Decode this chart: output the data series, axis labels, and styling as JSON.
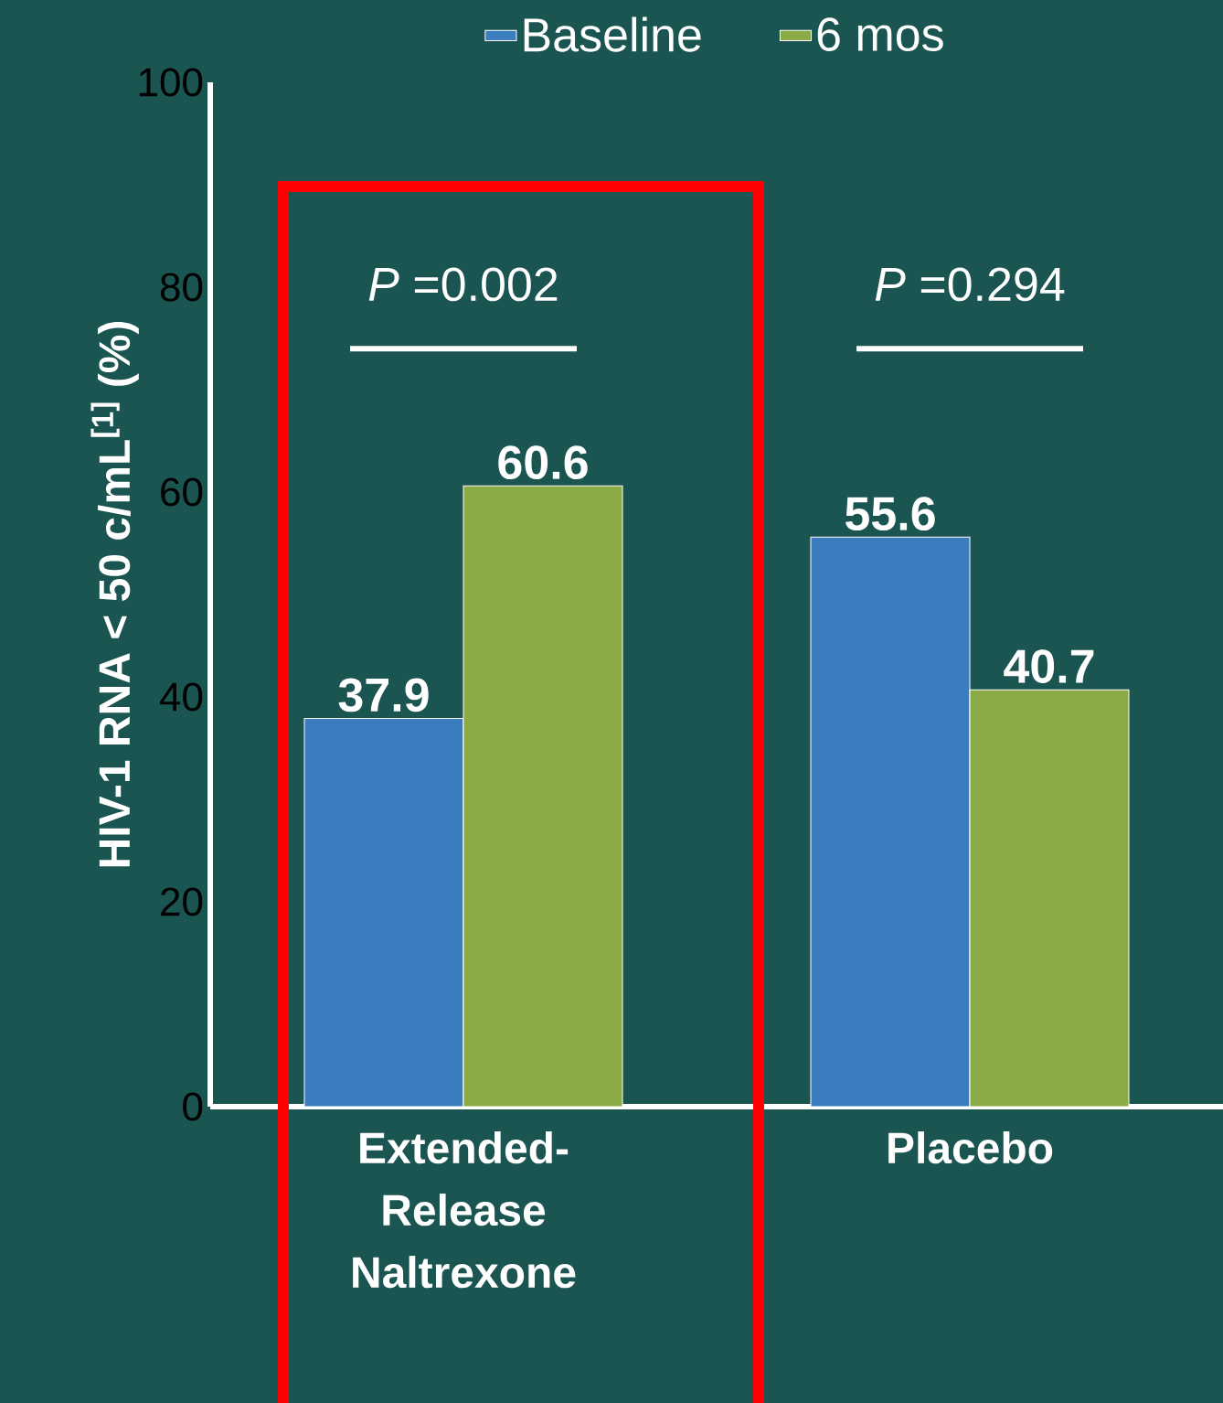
{
  "chart_data": {
    "type": "bar",
    "categories": [
      "Extended-Release Naltrexone",
      "Placebo"
    ],
    "series": [
      {
        "name": "Baseline",
        "color": "#3a7ebf",
        "values": [
          37.9,
          55.6
        ]
      },
      {
        "name": "6 mos",
        "color": "#8aab45",
        "values": [
          60.6,
          40.7
        ]
      }
    ],
    "ylabel": "HIV-1 RNA < 50 c/mL$^{[1]}$ (%)",
    "ylim": [
      0,
      100
    ],
    "yticks": [
      0,
      20,
      40,
      60,
      80,
      100
    ],
    "annotations": [
      "*P* =0.002",
      "*P* =0.294"
    ],
    "data_labels": true,
    "legend": "top",
    "grid": false
  }
}
